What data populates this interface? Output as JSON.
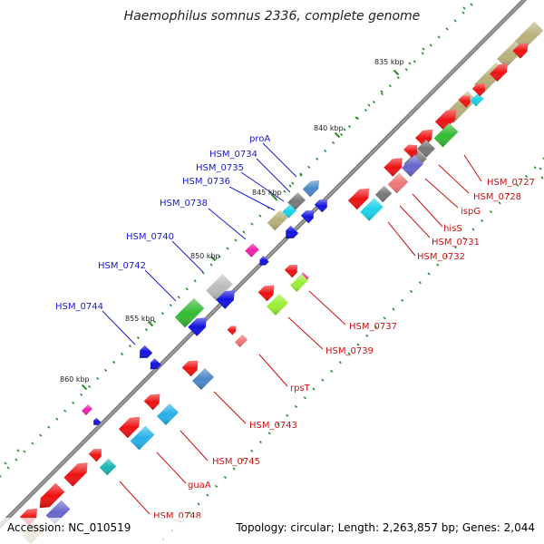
{
  "title": "Haemophilus somnus 2336, complete genome",
  "footer": {
    "accession": "Accession: NC_010519",
    "info": "Topology: circular; Length: 2,263,857 bp; Genes: 2,044"
  },
  "scale_labels": [
    "835 kbp",
    "840 kbp",
    "845 kbp",
    "850 kbp",
    "855 kbp",
    "860 kbp"
  ],
  "strand_labels": {
    "reverse": [
      "proA",
      "HSM_0734",
      "HSM_0735",
      "HSM_0736",
      "HSM_0738",
      "HSM_0740",
      "HSM_0742",
      "HSM_0744"
    ],
    "forward": [
      "HSM_0727",
      "HSM_0728",
      "ispG",
      "hisS",
      "HSM_0731",
      "HSM_0732",
      "HSM_0737",
      "HSM_0739",
      "rpsT",
      "HSM_0743",
      "HSM_0745",
      "guaA",
      "HSM_0748"
    ]
  },
  "colors": {
    "backbone": "#7f7f7f",
    "reverse_label": "#1a1acc",
    "forward_label": "#cc1111",
    "tick": "#2a8a2a",
    "cds_red": "#ee1111",
    "cds_blue": "#1111dd",
    "cds_steelblue": "#4a86c8",
    "cds_cyan": "#19d3e8",
    "cds_skyblue": "#27b0e8",
    "cds_teal": "#19b3b3",
    "cds_green": "#33bb33",
    "cds_lime": "#99ee33",
    "cds_olive": "#b8b07a",
    "cds_gray": "#777777",
    "cds_lightgray": "#bbbbbb",
    "cds_pink": "#ee7777",
    "cds_magenta": "#ee22aa",
    "cds_slate": "#6666cc"
  }
}
